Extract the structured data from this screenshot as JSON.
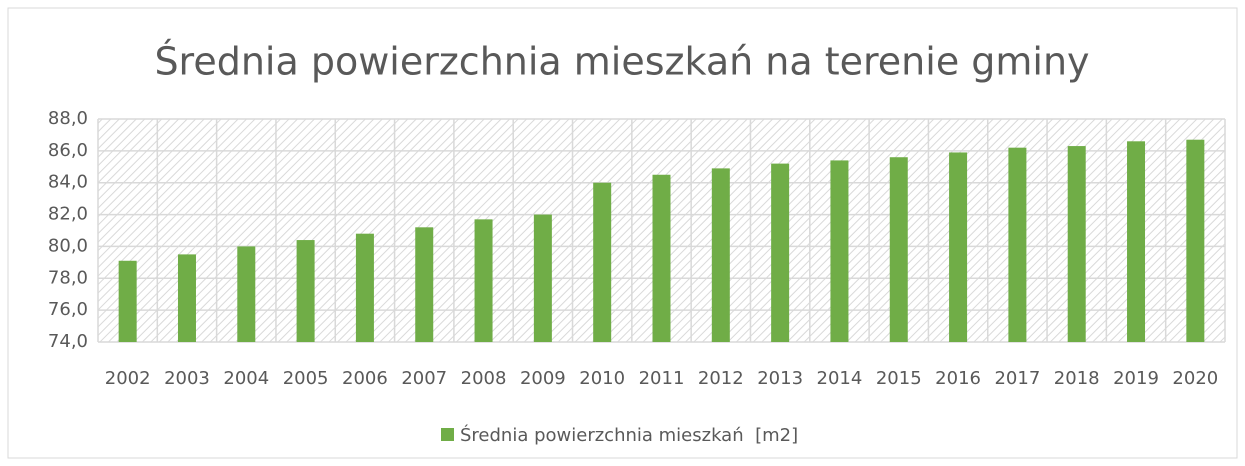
{
  "chart_data": {
    "type": "bar",
    "title": "Średnia powierzchnia mieszkań na terenie gminy",
    "categories": [
      "2002",
      "2003",
      "2004",
      "2005",
      "2006",
      "2007",
      "2008",
      "2009",
      "2010",
      "2011",
      "2012",
      "2013",
      "2014",
      "2015",
      "2016",
      "2017",
      "2018",
      "2019",
      "2020"
    ],
    "series": [
      {
        "name": "Średnia powierzchnia mieszkań  [m2]",
        "color": "#70ad47",
        "values": [
          79.1,
          79.5,
          80.0,
          80.4,
          80.8,
          81.2,
          81.7,
          82.0,
          84.0,
          84.5,
          84.9,
          85.2,
          85.4,
          85.6,
          85.9,
          86.2,
          86.3,
          86.6,
          86.7
        ]
      }
    ],
    "ylim": [
      74,
      88
    ],
    "yticks": [
      {
        "value": 74,
        "label": "74,0"
      },
      {
        "value": 76,
        "label": "76,0"
      },
      {
        "value": 78,
        "label": "78,0"
      },
      {
        "value": 80,
        "label": "80,0"
      },
      {
        "value": 82,
        "label": "82,0"
      },
      {
        "value": 84,
        "label": "84,0"
      },
      {
        "value": 86,
        "label": "86,0"
      },
      {
        "value": 88,
        "label": "88,0"
      }
    ],
    "grid": true,
    "legend": "bottom"
  }
}
